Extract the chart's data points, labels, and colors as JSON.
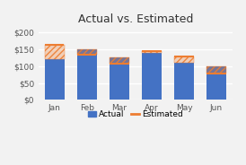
{
  "title": "Actual vs. Estimated",
  "categories": [
    "Jan",
    "Feb",
    "Mar",
    "Apr",
    "May",
    "Jun"
  ],
  "actual": [
    120,
    150,
    125,
    138,
    110,
    100
  ],
  "estimated": [
    162,
    132,
    108,
    145,
    127,
    78
  ],
  "bar_color": "#4472C4",
  "estimated_color": "#ED7D31",
  "background_color": "#F2F2F2",
  "plot_bg_color": "#F2F2F2",
  "grid_color": "#FFFFFF",
  "ylabel_ticks": [
    "$0",
    "$50",
    "$100",
    "$150",
    "$200"
  ],
  "ytick_vals": [
    0,
    50,
    100,
    150,
    200
  ],
  "ylim": [
    0,
    210
  ],
  "legend_actual": "Actual",
  "legend_estimated": "Estimated",
  "title_fontsize": 9,
  "tick_fontsize": 6.5,
  "legend_fontsize": 6.5
}
